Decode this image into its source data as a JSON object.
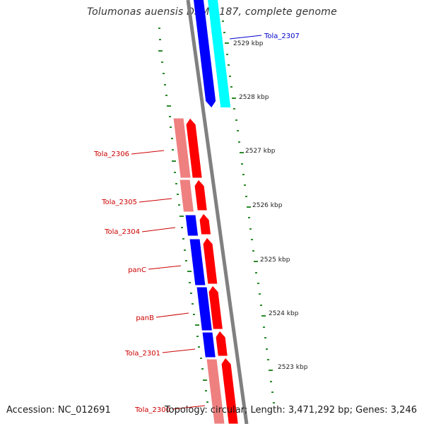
{
  "title": "Tolumonas auensis DSM 9187, complete genome",
  "accession": "Accession: NC_012691",
  "topology": "Topology: circular; Length: 3,471,292 bp; Genes: 3,246",
  "colors": {
    "forward_cds": "#ff0000",
    "reverse_cds": "#0000ff",
    "forward_cds_light": "#ef8080",
    "reverse_cds_light": "#00ffff",
    "backbone": "#808080",
    "tick": "#2a8a2a",
    "label_forward": "#cc0000",
    "label_reverse": "#0000cc"
  },
  "scale_labels": [
    "2529 kbp",
    "2528 kbp",
    "2527 kbp",
    "2526 kbp",
    "2525 kbp",
    "2524 kbp",
    "2523 kbp"
  ],
  "gene_labels": [
    "Tola_2307",
    "Tola_2306",
    "Tola_2305",
    "Tola_2304",
    "panC",
    "panB",
    "Tola_2301",
    "Tola_2300"
  ]
}
